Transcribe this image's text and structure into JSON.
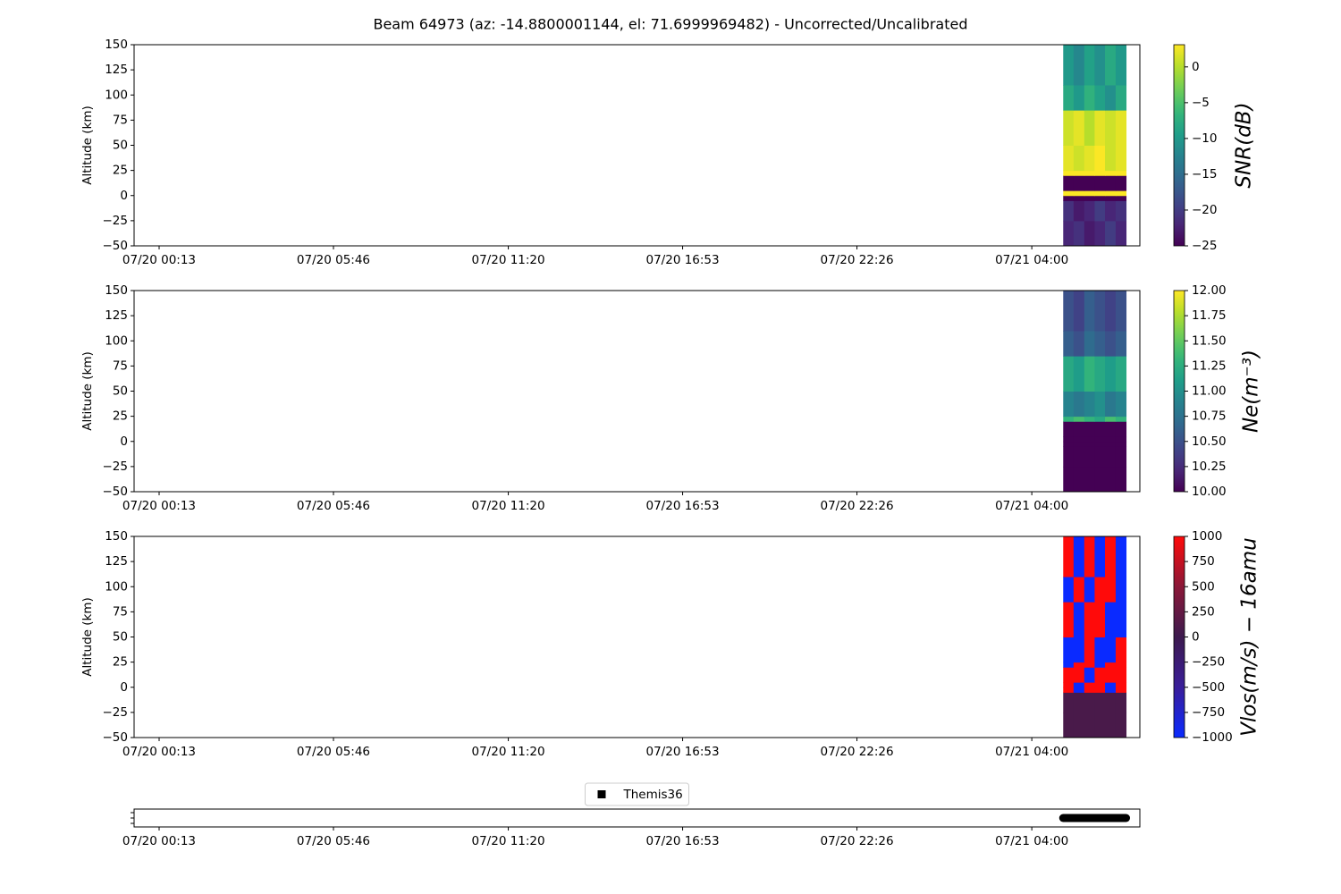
{
  "chart_data": [
    {
      "type": "heatmap",
      "title": "Beam 64973 (az: -14.8800001144, el: 71.6999969482) - Uncorrected/Uncalibrated",
      "y_label": "Altitude (km)",
      "colorbar_label": "SNR(dB)",
      "colormap": "viridis",
      "xlim": [
        -0.58,
        31.44
      ],
      "xticks": [
        {
          "value": 0.2167,
          "label": "07/20 00:13"
        },
        {
          "value": 5.7667,
          "label": "07/20 05:46"
        },
        {
          "value": 11.3333,
          "label": "07/20 11:20"
        },
        {
          "value": 16.8833,
          "label": "07/20 16:53"
        },
        {
          "value": 22.4333,
          "label": "07/20 22:26"
        },
        {
          "value": 28.0,
          "label": "07/21 04:00"
        }
      ],
      "ylim": [
        -50,
        150
      ],
      "yticks": [
        {
          "value": -50,
          "label": "−50"
        },
        {
          "value": -25,
          "label": "−25"
        },
        0,
        25,
        50,
        75,
        100,
        125,
        150
      ],
      "clim": [
        -25,
        3.1
      ],
      "cticks": [
        {
          "value": -25,
          "label": "−25"
        },
        {
          "value": -20,
          "label": "−20"
        },
        {
          "value": -15,
          "label": "−15"
        },
        {
          "value": -10,
          "label": "−10"
        },
        {
          "value": -5,
          "label": "−5"
        },
        0
      ],
      "x_edges": [
        29.0,
        29.33,
        29.67,
        30.0,
        30.33,
        30.67,
        31.0
      ],
      "y_edges": [
        -50,
        -25,
        -5,
        0,
        5,
        20,
        25,
        50,
        85,
        110,
        150
      ],
      "z": [
        [
          -22,
          -21,
          -23,
          -22,
          -20,
          -22
        ],
        [
          -21,
          -23,
          -22,
          -20,
          -22,
          -21
        ],
        [
          -25,
          -25,
          -25,
          -25,
          -25,
          -25
        ],
        [
          3,
          3,
          3,
          3,
          3,
          3
        ],
        [
          -25,
          -25,
          -25,
          -25,
          -25,
          -25
        ],
        [
          3,
          3,
          3,
          3,
          3,
          3
        ],
        [
          2,
          1,
          2,
          3,
          1,
          2
        ],
        [
          1,
          2,
          0,
          2,
          1,
          2
        ],
        [
          -8,
          -10,
          -7,
          -9,
          -11,
          -8
        ],
        [
          -10,
          -12,
          -9,
          -11,
          -8,
          -10
        ]
      ]
    },
    {
      "type": "heatmap",
      "y_label": "Altitude (km)",
      "colorbar_label": "Ne(m⁻³)",
      "colormap": "viridis",
      "xlim": [
        -0.58,
        31.44
      ],
      "xticks": [
        {
          "value": 0.2167,
          "label": "07/20 00:13"
        },
        {
          "value": 5.7667,
          "label": "07/20 05:46"
        },
        {
          "value": 11.3333,
          "label": "07/20 11:20"
        },
        {
          "value": 16.8833,
          "label": "07/20 16:53"
        },
        {
          "value": 22.4333,
          "label": "07/20 22:26"
        },
        {
          "value": 28.0,
          "label": "07/21 04:00"
        }
      ],
      "ylim": [
        -50,
        150
      ],
      "yticks": [
        {
          "value": -50,
          "label": "−50"
        },
        {
          "value": -25,
          "label": "−25"
        },
        0,
        25,
        50,
        75,
        100,
        125,
        150
      ],
      "clim": [
        10,
        12
      ],
      "cticks": [
        {
          "value": 10,
          "label": "10.00"
        },
        {
          "value": 10.25,
          "label": "10.25"
        },
        {
          "value": 10.5,
          "label": "10.50"
        },
        {
          "value": 10.75,
          "label": "10.75"
        },
        {
          "value": 11,
          "label": "11.00"
        },
        {
          "value": 11.25,
          "label": "11.25"
        },
        {
          "value": 11.5,
          "label": "11.50"
        },
        {
          "value": 11.75,
          "label": "11.75"
        },
        {
          "value": 12,
          "label": "12.00"
        }
      ],
      "x_edges": [
        29.0,
        29.33,
        29.67,
        30.0,
        30.33,
        30.67,
        31.0
      ],
      "y_edges": [
        -50,
        -25,
        -5,
        0,
        5,
        20,
        25,
        50,
        85,
        110,
        150
      ],
      "z": [
        [
          10.0,
          10.0,
          10.0,
          10.0,
          10.0,
          10.0
        ],
        [
          10.0,
          10.0,
          10.0,
          10.0,
          10.0,
          10.0
        ],
        [
          10.0,
          10.0,
          10.0,
          10.0,
          10.0,
          10.0
        ],
        [
          10.0,
          10.0,
          10.0,
          10.0,
          10.0,
          10.0
        ],
        [
          10.0,
          10.0,
          10.0,
          10.0,
          10.0,
          10.0
        ],
        [
          11.3,
          11.4,
          11.3,
          11.2,
          11.4,
          11.3
        ],
        [
          10.9,
          10.8,
          10.9,
          11.0,
          10.8,
          10.9
        ],
        [
          11.2,
          11.1,
          11.3,
          11.2,
          11.1,
          11.2
        ],
        [
          10.6,
          10.5,
          10.7,
          10.6,
          10.5,
          10.6
        ],
        [
          10.5,
          10.4,
          10.6,
          10.5,
          10.4,
          10.5
        ]
      ]
    },
    {
      "type": "heatmap",
      "y_label": "Altitude (km)",
      "colorbar_label": "Vlos(m/s) − 16amu",
      "colormap": "bluered",
      "xlim": [
        -0.58,
        31.44
      ],
      "xticks": [
        {
          "value": 0.2167,
          "label": "07/20 00:13"
        },
        {
          "value": 5.7667,
          "label": "07/20 05:46"
        },
        {
          "value": 11.3333,
          "label": "07/20 11:20"
        },
        {
          "value": 16.8833,
          "label": "07/20 16:53"
        },
        {
          "value": 22.4333,
          "label": "07/20 22:26"
        },
        {
          "value": 28.0,
          "label": "07/21 04:00"
        }
      ],
      "ylim": [
        -50,
        150
      ],
      "yticks": [
        {
          "value": -50,
          "label": "−50"
        },
        {
          "value": -25,
          "label": "−25"
        },
        0,
        25,
        50,
        75,
        100,
        125,
        150
      ],
      "clim": [
        -1000,
        1000
      ],
      "cticks": [
        {
          "value": -1000,
          "label": "−1000"
        },
        {
          "value": -750,
          "label": "−750"
        },
        {
          "value": -500,
          "label": "−500"
        },
        {
          "value": -250,
          "label": "−250"
        },
        0,
        250,
        500,
        750,
        1000
      ],
      "x_edges": [
        29.0,
        29.33,
        29.67,
        30.0,
        30.33,
        30.67,
        31.0
      ],
      "y_edges": [
        -50,
        -25,
        -5,
        0,
        5,
        20,
        25,
        50,
        85,
        110,
        150
      ],
      "z": [
        [
          80,
          80,
          80,
          80,
          80,
          80
        ],
        [
          80,
          80,
          80,
          80,
          80,
          80
        ],
        [
          1000,
          -1000,
          1000,
          1000,
          -1000,
          1000
        ],
        [
          1000,
          -1000,
          1000,
          1000,
          -1000,
          1000
        ],
        [
          1000,
          1000,
          -1000,
          1000,
          1000,
          1000
        ],
        [
          -1000,
          1000,
          1000,
          -1000,
          1000,
          1000
        ],
        [
          -1000,
          -1000,
          1000,
          -1000,
          -1000,
          1000
        ],
        [
          1000,
          -1000,
          1000,
          1000,
          -1000,
          -1000
        ],
        [
          -1000,
          1000,
          -1000,
          1000,
          1000,
          -1000
        ],
        [
          1000,
          -1000,
          1000,
          -1000,
          1000,
          -1000
        ]
      ]
    },
    {
      "type": "timeline",
      "legend": "upper center",
      "xlim": [
        -0.58,
        31.44
      ],
      "xticks": [
        {
          "value": 0.2167,
          "label": "07/20 00:13"
        },
        {
          "value": 5.7667,
          "label": "07/20 05:46"
        },
        {
          "value": 11.3333,
          "label": "07/20 11:20"
        },
        {
          "value": 16.8833,
          "label": "07/20 16:53"
        },
        {
          "value": 22.4333,
          "label": "07/20 22:26"
        },
        {
          "value": 28.0,
          "label": "07/21 04:00"
        }
      ],
      "series": [
        {
          "name": "Themis36",
          "color": "#000000",
          "x": [
            29.0,
            31.0
          ]
        }
      ]
    }
  ]
}
